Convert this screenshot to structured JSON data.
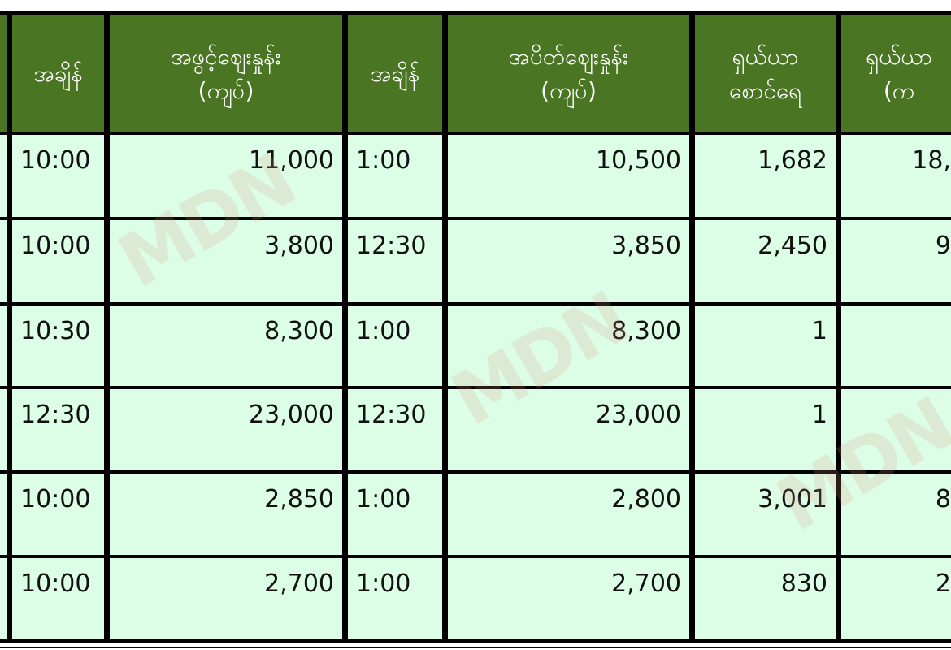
{
  "header": {
    "col0": "",
    "time_open": "အချိန်",
    "open_price": "အဖွင့်ဈေးနှုန်း\n(ကျပ်)",
    "time_close": "အချိန်",
    "close_price": "အပိတ်ဈေးနှုန်း\n(ကျပ်)",
    "shares": "ရှယ်ယာ\nစောင်ရေ",
    "value": "ရှယ်ယာ\n(က"
  },
  "rows": [
    {
      "time_open": "10:00",
      "open_price": "11,000",
      "time_close": "1:00",
      "close_price": "10,500",
      "shares": "1,682",
      "value": "18,"
    },
    {
      "time_open": "10:00",
      "open_price": "3,800",
      "time_close": "12:30",
      "close_price": "3,850",
      "shares": "2,450",
      "value": "9"
    },
    {
      "time_open": "10:30",
      "open_price": "8,300",
      "time_close": "1:00",
      "close_price": "8,300",
      "shares": "1",
      "value": ""
    },
    {
      "time_open": "12:30",
      "open_price": "23,000",
      "time_close": "12:30",
      "close_price": "23,000",
      "shares": "1",
      "value": ""
    },
    {
      "time_open": "10:00",
      "open_price": "2,850",
      "time_close": "1:00",
      "close_price": "2,800",
      "shares": "3,001",
      "value": "8"
    },
    {
      "time_open": "10:00",
      "open_price": "2,700",
      "time_close": "1:00",
      "close_price": "2,700",
      "shares": "830",
      "value": "2"
    }
  ],
  "watermark": "MDN",
  "colors": {
    "header_bg": "#4a7523",
    "cell_bg": "#dcfde6",
    "border": "#000000"
  }
}
